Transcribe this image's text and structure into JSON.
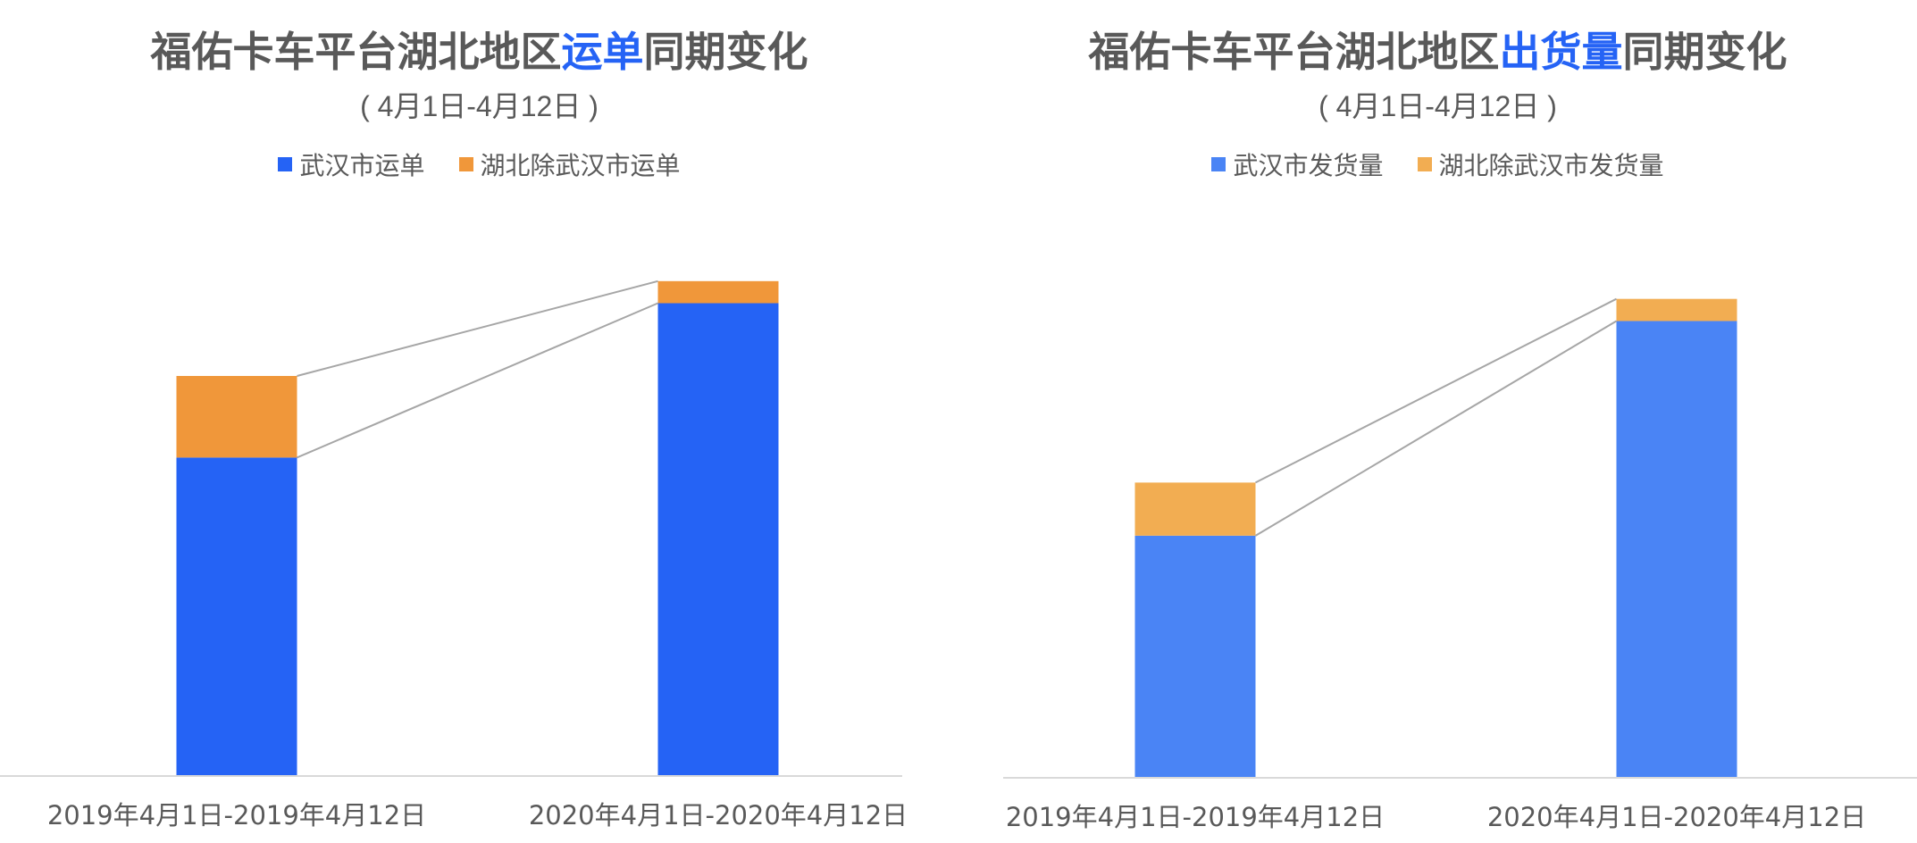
{
  "chart_data": [
    {
      "type": "bar",
      "stacked": true,
      "title_parts": [
        {
          "text": "福佑卡车平台湖北地区",
          "highlight": false
        },
        {
          "text": "运单",
          "highlight": true
        },
        {
          "text": "同期变化",
          "highlight": false
        }
      ],
      "subtitle": "( 4月1日-4月12日 )",
      "categories": [
        "2019年4月1日-2019年4月12日",
        "2020年4月1日-2020年4月12日"
      ],
      "series": [
        {
          "name": "武汉市运单",
          "color": "#2563f5",
          "values": [
            72,
            107
          ]
        },
        {
          "name": "湖北除武汉市运单",
          "color": "#f0973a",
          "values": [
            18.5,
            5
          ]
        }
      ],
      "ylim": [
        0,
        115
      ],
      "legend_position": "top",
      "grid": false
    },
    {
      "type": "bar",
      "stacked": true,
      "title_parts": [
        {
          "text": "福佑卡车平台湖北地区",
          "highlight": false
        },
        {
          "text": "出货量",
          "highlight": true
        },
        {
          "text": "同期变化",
          "highlight": false
        }
      ],
      "subtitle": "( 4月1日-4月12日 )",
      "categories": [
        "2019年4月1日-2019年4月12日",
        "2020年4月1日-2020年4月12日"
      ],
      "series": [
        {
          "name": "武汉市发货量",
          "color": "#4a84f5",
          "values": [
            54.5,
            103
          ]
        },
        {
          "name": "湖北除武汉市发货量",
          "color": "#f2ad52",
          "values": [
            12,
            5
          ]
        }
      ],
      "ylim": [
        0,
        115
      ],
      "legend_position": "top",
      "grid": false
    }
  ],
  "colors": {
    "text": "#595959",
    "axis": "#d9d9d9",
    "connector": "#a6a6a6",
    "highlight": "#2563f5"
  }
}
